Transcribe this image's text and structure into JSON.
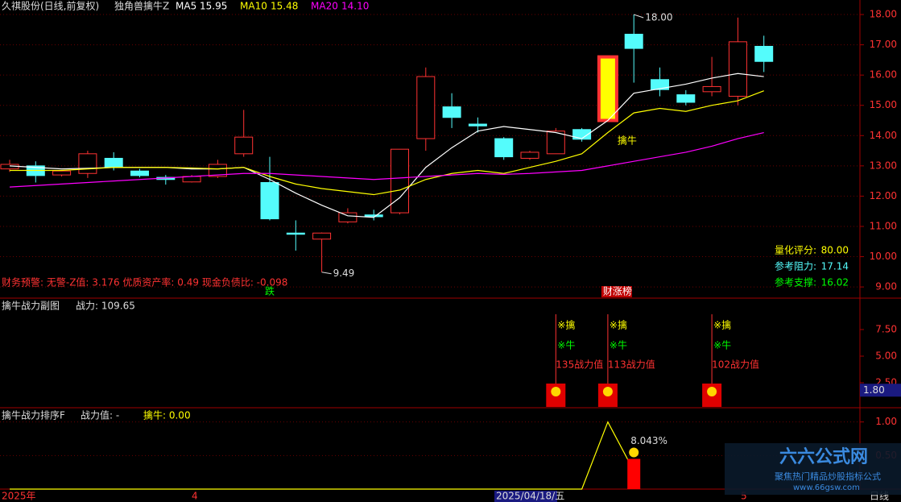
{
  "header": {
    "stock": "久祺股份(日线,前复权)",
    "indicator": "独角兽擒牛Z"
  },
  "finance_warning": "财务预警: 无警-Z值: 3.176 优质资产率: 0.49 现金负债比: -0.098",
  "x_axis": {
    "labels": [
      "2025年",
      "4",
      "2025/04/18/五",
      "5"
    ],
    "period": "日线"
  },
  "logo": {
    "name": "六六公式网",
    "slogan": "聚焦热门精品炒股指标公式",
    "url": "www.66gsw.com"
  },
  "chart_data": [
    {
      "type": "candlestick",
      "up_color": "#ff3232",
      "down_color": "#54fcfc",
      "ylim": [
        8.63,
        18.48
      ],
      "grid": true,
      "yticks": [
        {
          "value": 9,
          "label": "9.00"
        },
        {
          "value": 10,
          "label": "10.00"
        },
        {
          "value": 11,
          "label": "11.00"
        },
        {
          "value": 12,
          "label": "12.00"
        },
        {
          "value": 13,
          "label": "13.00"
        },
        {
          "value": 14,
          "label": "14.00"
        },
        {
          "value": 15,
          "label": "15.00"
        },
        {
          "value": 16,
          "label": "16.00"
        },
        {
          "value": 17,
          "label": "17.00"
        },
        {
          "value": 18,
          "label": "18.00"
        }
      ],
      "open": [
        12.9,
        13.0,
        12.7,
        12.75,
        13.25,
        12.83,
        12.62,
        12.47,
        12.65,
        13.4,
        12.45,
        10.78,
        10.58,
        11.15,
        11.38,
        11.45,
        13.9,
        14.95,
        14.38,
        13.9,
        13.25,
        13.4,
        14.2,
        14.5,
        17.35,
        15.85,
        15.35,
        15.45,
        15.3,
        16.95
      ],
      "close": [
        13.05,
        12.68,
        12.83,
        13.4,
        12.95,
        12.68,
        12.55,
        12.65,
        13.05,
        13.95,
        11.25,
        10.74,
        10.78,
        11.45,
        11.32,
        13.55,
        15.95,
        14.6,
        14.32,
        13.3,
        13.45,
        14.15,
        13.88,
        16.6,
        16.88,
        15.52,
        15.1,
        15.62,
        17.1,
        16.45
      ],
      "high": [
        13.2,
        13.15,
        12.85,
        13.5,
        13.45,
        12.9,
        12.7,
        12.7,
        13.2,
        14.85,
        13.3,
        11.2,
        10.8,
        11.6,
        11.55,
        13.55,
        16.25,
        15.4,
        14.6,
        13.95,
        13.5,
        14.25,
        14.25,
        16.6,
        18.0,
        16.25,
        15.5,
        16.6,
        17.9,
        17.3
      ],
      "low": [
        12.8,
        12.45,
        12.65,
        12.6,
        12.85,
        12.62,
        12.38,
        12.45,
        12.6,
        13.3,
        11.2,
        10.2,
        9.49,
        11.1,
        11.2,
        11.4,
        13.5,
        14.25,
        14.1,
        13.2,
        13.2,
        13.4,
        13.8,
        14.5,
        15.75,
        15.3,
        15.0,
        15.3,
        15.0,
        16.1
      ],
      "high_label": "18.00",
      "low_label": "9.49",
      "signal": {
        "label": "擒牛",
        "candle": 23,
        "color": "#ffff00"
      },
      "tags": [
        {
          "label": "跌",
          "candle": 10,
          "color": "#00ff00"
        },
        {
          "label": "财涨榜",
          "candle": 23,
          "color": "#ffffff"
        }
      ],
      "series": [
        {
          "name": "MA5",
          "color": "#ffffff",
          "value_label": "15.95",
          "values": [
            13.0,
            12.95,
            12.9,
            12.92,
            12.95,
            12.95,
            12.95,
            12.9,
            12.9,
            12.95,
            12.55,
            12.1,
            11.7,
            11.35,
            11.3,
            11.95,
            12.95,
            13.6,
            14.15,
            14.3,
            14.2,
            14.1,
            13.9,
            14.5,
            15.4,
            15.55,
            15.7,
            15.9,
            16.05,
            15.95
          ]
        },
        {
          "name": "MA10",
          "color": "#ffff00",
          "value_label": "15.48",
          "values": [
            12.85,
            12.85,
            12.85,
            12.9,
            12.95,
            12.95,
            12.95,
            12.93,
            12.9,
            12.95,
            12.65,
            12.4,
            12.25,
            12.15,
            12.05,
            12.2,
            12.55,
            12.75,
            12.85,
            12.75,
            12.95,
            13.15,
            13.4,
            14.1,
            14.75,
            14.9,
            14.8,
            15.0,
            15.15,
            15.48
          ]
        },
        {
          "name": "MA20",
          "color": "#ff00ff",
          "value_label": "14.10",
          "values": [
            12.3,
            12.35,
            12.4,
            12.45,
            12.5,
            12.55,
            12.6,
            12.65,
            12.7,
            12.75,
            12.75,
            12.7,
            12.65,
            12.6,
            12.55,
            12.6,
            12.65,
            12.7,
            12.75,
            12.72,
            12.75,
            12.8,
            12.85,
            13.0,
            13.15,
            13.3,
            13.45,
            13.65,
            13.9,
            14.1
          ]
        }
      ],
      "metrics": [
        {
          "label": "量化评分:",
          "value": "80.00",
          "color": "#ffff00"
        },
        {
          "label": "参考阻力:",
          "value": "17.14",
          "color": "#54fcfc"
        },
        {
          "label": "参考支撑:",
          "value": "16.02",
          "color": "#00ff00"
        }
      ]
    },
    {
      "type": "signal",
      "title": "擒牛战力副图",
      "legend": "战力: 109.65",
      "ylim": [
        0.23,
        10.3
      ],
      "yticks": [
        {
          "value": 2.5,
          "label": "2.50"
        },
        {
          "value": 5,
          "label": "5.00"
        },
        {
          "value": 7.5,
          "label": "7.50"
        }
      ],
      "current": {
        "value": 1.8,
        "label": "1.80"
      },
      "marks_text": [
        "※擒",
        "※牛"
      ],
      "values": [
        null,
        null,
        null,
        null,
        null,
        null,
        null,
        null,
        null,
        null,
        null,
        null,
        null,
        null,
        null,
        null,
        null,
        null,
        null,
        null,
        null,
        135,
        null,
        113,
        null,
        null,
        null,
        102,
        null,
        null
      ],
      "value_labels": [
        null,
        null,
        null,
        null,
        null,
        null,
        null,
        null,
        null,
        null,
        null,
        null,
        null,
        null,
        null,
        null,
        null,
        null,
        null,
        null,
        null,
        "135战力值",
        null,
        "113战力值",
        null,
        null,
        null,
        "102战力值",
        null,
        null
      ]
    },
    {
      "type": "line",
      "title": "擒牛战力排序F",
      "legend": [
        "战力值: -",
        "擒牛: 0.00"
      ],
      "color": "#ffff00",
      "bar_color": "#ff0000",
      "ylim": [
        0,
        1.2
      ],
      "yticks": [
        {
          "value": 0.5,
          "label": "0.50"
        },
        {
          "value": 1,
          "label": "1.00"
        }
      ],
      "values": [
        0,
        0,
        0,
        0,
        0,
        0,
        0,
        0,
        0,
        0,
        0,
        0,
        0,
        0,
        0,
        0,
        0,
        0,
        0,
        0,
        0,
        0,
        0,
        1.0,
        0.27,
        null,
        null,
        null,
        null,
        null
      ],
      "bar_values": [
        null,
        null,
        null,
        null,
        null,
        null,
        null,
        null,
        null,
        null,
        null,
        null,
        null,
        null,
        null,
        null,
        null,
        null,
        null,
        null,
        null,
        null,
        null,
        null,
        0.45,
        null,
        null,
        null,
        null,
        null
      ],
      "bar_label": "8.043%"
    }
  ]
}
